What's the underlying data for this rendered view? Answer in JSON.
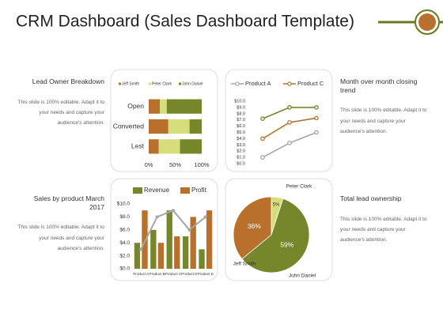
{
  "title": "CRM Dashboard (Sales Dashboard Template)",
  "captions": [
    {
      "heading": "Lead Owner Breakdown",
      "body": "This slide is 100% editable. Adapt it to your needs and capture your audience's attention."
    },
    {
      "heading": "Month over month closing trend",
      "body": "This slide is 100% editable. Adapt it to your needs and capture your audience's attention."
    },
    {
      "heading": "Sales by product March 2017",
      "body": "This slide is 100% editable. Adapt it to your needs and capture your audience's attention."
    },
    {
      "heading": "Total lead ownership",
      "body": "This slide is 100% editable. Adapt it to your needs and capture your audience's attention."
    }
  ],
  "chart_data": [
    {
      "type": "bar",
      "orientation": "horizontal",
      "stacked": true,
      "categories": [
        "Open",
        "Converted",
        "Lest"
      ],
      "series": [
        {
          "name": "Jeff Smith",
          "color": "#b8702c",
          "values": [
            21,
            37,
            19
          ]
        },
        {
          "name": "Peter Clark",
          "color": "#d6de7c",
          "values": [
            13,
            40,
            40
          ]
        },
        {
          "name": "John Daniel",
          "color": "#76862a",
          "values": [
            66,
            23,
            41
          ]
        }
      ],
      "xlim": [
        0,
        100
      ],
      "xticks": [
        {
          "value": 0,
          "label": "0%"
        },
        {
          "value": 50,
          "label": "50%"
        },
        {
          "value": 100,
          "label": "100%"
        }
      ]
    },
    {
      "type": "line",
      "categories": [
        null,
        null,
        null
      ],
      "series": [
        {
          "name": "Product A",
          "color": "#a6a6a6",
          "values": [
            1.0,
            3.3,
            5.0
          ]
        },
        {
          "name": "Product C",
          "color": "#b8702c",
          "values": [
            4.0,
            6.6,
            7.3
          ]
        },
        {
          "color": "#76862a",
          "values": [
            7.2,
            9.0,
            9.0
          ]
        }
      ],
      "ylim": [
        0,
        10
      ],
      "yticks": [
        {
          "value": 0,
          "label": "$0.0"
        },
        {
          "value": 1,
          "label": "$1.0"
        },
        {
          "value": 2,
          "label": "$2.0"
        },
        {
          "value": 3,
          "label": "$3.0"
        },
        {
          "value": 4,
          "label": "$4.0"
        },
        {
          "value": 5,
          "label": "$5.0"
        },
        {
          "value": 6,
          "label": "$6.0"
        },
        {
          "value": 7,
          "label": "$7.0"
        },
        {
          "value": 8,
          "label": "$8.0"
        },
        {
          "value": 9,
          "label": "$9.0"
        },
        {
          "value": 10,
          "label": "$10.0"
        }
      ]
    },
    {
      "type": "bar",
      "categories": [
        "Product A",
        "Product B",
        "Product C",
        "Product D",
        "Product E"
      ],
      "series": [
        {
          "name": "Revenue",
          "color": "#76862a",
          "values": [
            4.0,
            6.0,
            9.0,
            5.0,
            3.0
          ]
        },
        {
          "name": "Profit",
          "color": "#b8702c",
          "values": [
            9.0,
            4.0,
            5.0,
            8.0,
            9.0
          ]
        },
        {
          "type": "line",
          "color": "#a6a6a6",
          "values": [
            3.0,
            8.0,
            9.0,
            6.0,
            8.0
          ]
        }
      ],
      "ylim": [
        0,
        10
      ],
      "yticks": [
        {
          "value": 0,
          "label": "$0.0"
        },
        {
          "value": 2,
          "label": "$2.0"
        },
        {
          "value": 4,
          "label": "$4.0"
        },
        {
          "value": 6,
          "label": "$6.0"
        },
        {
          "value": 8,
          "label": "$8.0"
        },
        {
          "value": 10,
          "label": "$10.0"
        }
      ]
    },
    {
      "type": "pie",
      "categories": [
        "Peter Clark",
        "John Daniel",
        "Jeff Smith"
      ],
      "values": [
        5,
        59,
        36
      ],
      "value_labels": [
        "5%",
        "59%",
        "36%"
      ],
      "colors": [
        "#d6de7c",
        "#76862a",
        "#b8702c"
      ]
    }
  ]
}
